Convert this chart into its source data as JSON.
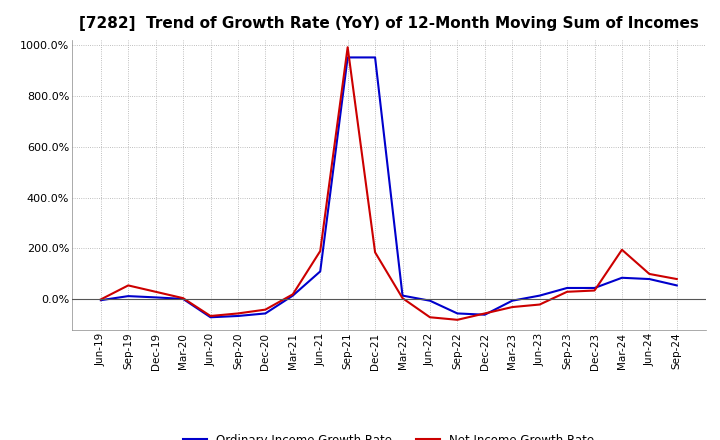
{
  "title": "[7282]  Trend of Growth Rate (YoY) of 12-Month Moving Sum of Incomes",
  "title_fontsize": 11,
  "background_color": "#ffffff",
  "plot_bg_color": "#ffffff",
  "grid_color": "#aaaaaa",
  "grid_style": "dotted",
  "ylim": [
    -120,
    1020
  ],
  "yticks": [
    0,
    200,
    400,
    600,
    800,
    1000
  ],
  "x_labels": [
    "Jun-19",
    "Sep-19",
    "Dec-19",
    "Mar-20",
    "Jun-20",
    "Sep-20",
    "Dec-20",
    "Mar-21",
    "Jun-21",
    "Sep-21",
    "Dec-21",
    "Mar-22",
    "Jun-22",
    "Sep-22",
    "Dec-22",
    "Mar-23",
    "Jun-23",
    "Sep-23",
    "Dec-23",
    "Mar-24",
    "Jun-24",
    "Sep-24"
  ],
  "ordinary_income": [
    -3,
    13,
    8,
    2,
    -70,
    -65,
    -55,
    15,
    110,
    950,
    950,
    15,
    -5,
    -55,
    -60,
    -5,
    15,
    45,
    45,
    85,
    80,
    55
  ],
  "net_income": [
    0,
    55,
    30,
    5,
    -65,
    -55,
    -40,
    20,
    190,
    990,
    185,
    5,
    -70,
    -80,
    -55,
    -30,
    -20,
    30,
    35,
    195,
    100,
    80
  ],
  "ordinary_color": "#0000cc",
  "net_color": "#cc0000",
  "line_width": 1.5,
  "legend_labels": [
    "Ordinary Income Growth Rate",
    "Net Income Growth Rate"
  ],
  "legend_ncol": 2,
  "tick_fontsize": 7.5,
  "ylabel_fontsize": 8
}
